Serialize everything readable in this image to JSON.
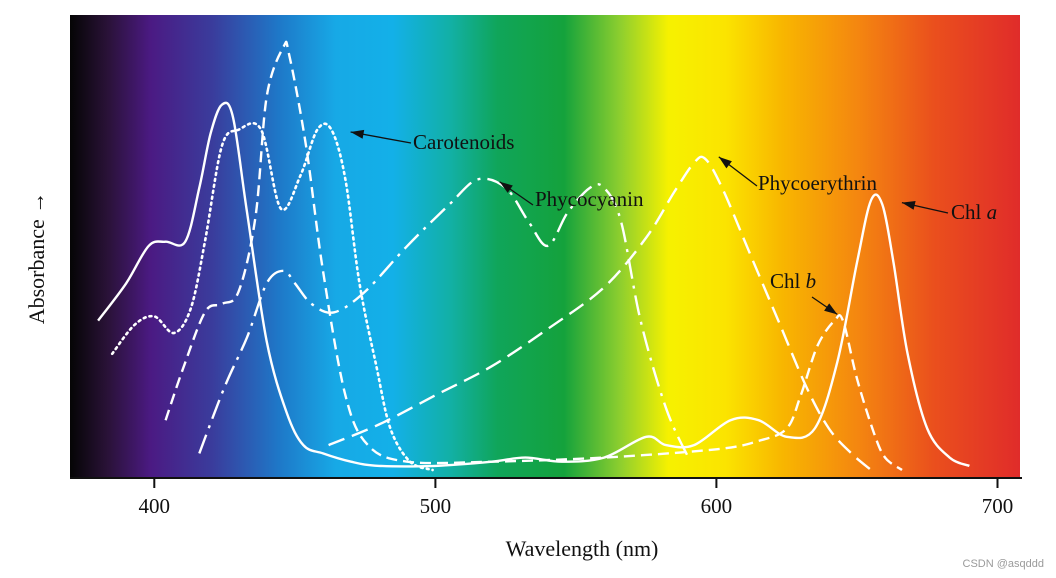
{
  "chart_data": {
    "type": "line",
    "title": "",
    "xlabel": "Wavelength (nm)",
    "ylabel": "Absorbance →",
    "xlim": [
      370,
      708
    ],
    "ylim": [
      0,
      100
    ],
    "xticks": [
      400,
      500,
      600,
      700
    ],
    "grid": false,
    "background": "visible spectrum gradient",
    "series": [
      {
        "name": "Chl a",
        "style": "solid",
        "x": [
          380,
          390,
          398,
          404,
          411,
          416,
          420,
          424,
          428,
          433,
          440,
          447,
          453,
          460,
          470,
          480,
          500,
          520,
          532,
          545,
          560,
          575,
          582,
          592,
          605,
          615,
          625,
          635,
          643,
          650,
          655,
          659,
          663,
          668,
          675,
          683,
          690
        ],
        "y": [
          36,
          45,
          54,
          55,
          55,
          68,
          81,
          88,
          85,
          62,
          31,
          14,
          6,
          4,
          2,
          1,
          1,
          2,
          3,
          2,
          3,
          8,
          6,
          6,
          12,
          12,
          8,
          10,
          26,
          50,
          65,
          64,
          50,
          28,
          10,
          3,
          1
        ]
      },
      {
        "name": "Chl b",
        "style": "dashed",
        "x": [
          404,
          410,
          418,
          424,
          430,
          436,
          440,
          446,
          448,
          454,
          460,
          468,
          476,
          490,
          520,
          560,
          600,
          615,
          625,
          630,
          636,
          642,
          645,
          650,
          656,
          660,
          666
        ],
        "y": [
          12,
          24,
          38,
          40,
          43,
          61,
          90,
          102,
          100,
          78,
          48,
          18,
          6,
          2,
          2,
          3,
          5,
          7,
          10,
          18,
          30,
          36,
          36,
          22,
          9,
          3,
          0
        ]
      },
      {
        "name": "Carotenoids",
        "style": "dotted",
        "x": [
          385,
          393,
          400,
          407,
          413,
          418,
          424,
          430,
          438,
          445,
          452,
          458,
          463,
          468,
          473,
          479,
          484,
          491,
          499
        ],
        "y": [
          28,
          35,
          37,
          33,
          39,
          55,
          78,
          82,
          82,
          63,
          71,
          82,
          82,
          70,
          45,
          25,
          10,
          2,
          0
        ]
      },
      {
        "name": "Phycocyanin",
        "style": "dash-dot",
        "x": [
          416,
          425,
          433,
          440,
          446,
          450,
          456,
          464,
          475,
          490,
          505,
          515,
          525,
          533,
          540,
          547,
          555,
          560,
          566,
          573,
          582,
          590
        ],
        "y": [
          4,
          20,
          32,
          45,
          48,
          45,
          40,
          38,
          43,
          54,
          64,
          70,
          68,
          60,
          54,
          62,
          68,
          68,
          60,
          36,
          15,
          3
        ]
      },
      {
        "name": "Phycoerythrin",
        "style": "long-dashed",
        "x": [
          462,
          480,
          500,
          520,
          540,
          560,
          575,
          585,
          592,
          596,
          602,
          612,
          622,
          632,
          640,
          648,
          655
        ],
        "y": [
          6,
          11,
          18,
          25,
          34,
          44,
          56,
          67,
          74,
          75,
          68,
          52,
          36,
          20,
          10,
          4,
          0
        ]
      }
    ],
    "annotations": [
      {
        "text": "Carotenoids",
        "target": "Carotenoids"
      },
      {
        "text": "Phycocyanin",
        "target": "Phycocyanin"
      },
      {
        "text": "Phycoerythrin",
        "target": "Phycoerythrin"
      },
      {
        "text": "Chl b",
        "target": "Chl b"
      },
      {
        "text": "Chl a",
        "target": "Chl a"
      }
    ],
    "watermark": "CSDN @asqddd"
  }
}
